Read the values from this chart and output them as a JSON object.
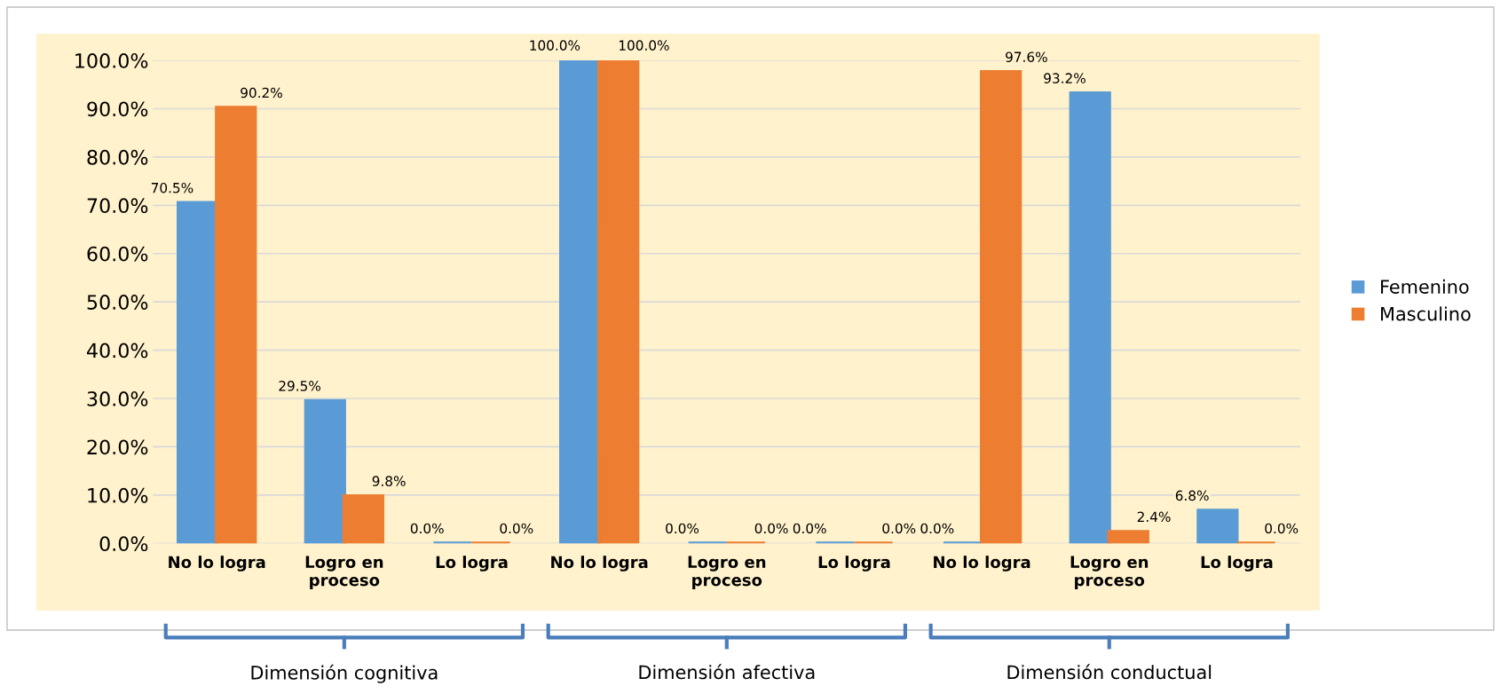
{
  "chart_data": {
    "type": "bar",
    "categories": [
      "No lo logra",
      "Logro en\nproceso",
      "Lo logra",
      "No lo logra",
      "Logro en\nproceso",
      "Lo logra",
      "No lo logra",
      "Logro en\nproceso",
      "Lo logra"
    ],
    "series": [
      {
        "name": "Femenino",
        "color": "#5b9bd5",
        "values": [
          70.5,
          29.5,
          0,
          100,
          0,
          0,
          0,
          93.2,
          6.8
        ],
        "value_labels": [
          "70.5%",
          "29.5%",
          "0.0%",
          "100.0%",
          "0.0%",
          "0.0%",
          "0.0%",
          "93.2%",
          "6.8%"
        ]
      },
      {
        "name": "Masculino",
        "color": "#ed7d31",
        "values": [
          90.2,
          9.8,
          0,
          100,
          0,
          0,
          97.6,
          2.4,
          0
        ],
        "value_labels": [
          "90.2%",
          "9.8%",
          "0.0%",
          "100.0%",
          "0.0%",
          "0.0%",
          "97.6%",
          "2.4%",
          "0.0%"
        ]
      }
    ],
    "ylim": [
      0,
      100
    ],
    "yticks": [
      {
        "value": 0,
        "label": "0.0%"
      },
      {
        "value": 10,
        "label": "10.0%"
      },
      {
        "value": 20,
        "label": "20.0%"
      },
      {
        "value": 30,
        "label": "30.0%"
      },
      {
        "value": 40,
        "label": "40.0%"
      },
      {
        "value": 50,
        "label": "50.0%"
      },
      {
        "value": 60,
        "label": "60.0%"
      },
      {
        "value": 70,
        "label": "70.0%"
      },
      {
        "value": 80,
        "label": "80.0%"
      },
      {
        "value": 90,
        "label": "90.0%"
      },
      {
        "value": 100,
        "label": "100.0%"
      }
    ],
    "grid": "y",
    "legend": "right",
    "annotations": [
      "Dimensión cognitiva",
      "Dimensión afectiva",
      "Dimensión conductual"
    ]
  }
}
